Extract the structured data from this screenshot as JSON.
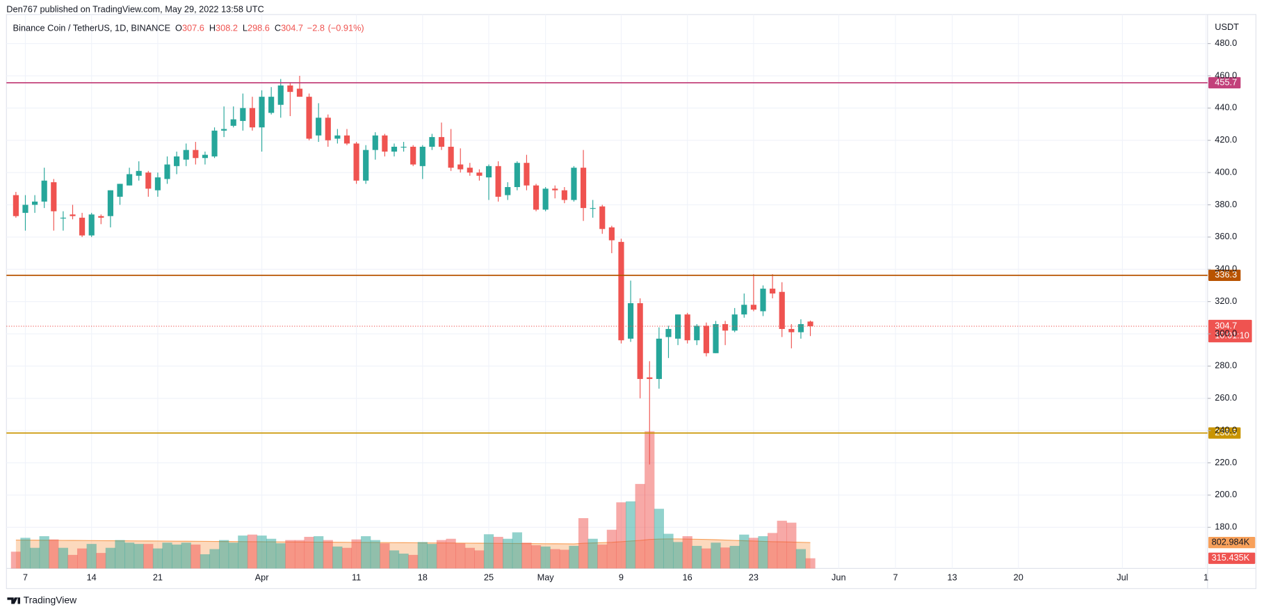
{
  "header": {
    "publisher": "Den767 published on TradingView.com, May 29, 2022 13:58 UTC"
  },
  "footer": {
    "brand": "TradingView"
  },
  "chart_data": {
    "type": "candlestick",
    "legend": {
      "name": "Binance Coin / TetherUS, 1D, BINANCE",
      "fields": [
        {
          "key": "O",
          "value": 307.6
        },
        {
          "key": "H",
          "value": 308.2
        },
        {
          "key": "L",
          "value": 298.6
        },
        {
          "key": "C",
          "value": 304.7
        }
      ],
      "change": {
        "value": -2.8,
        "label": "−2.8"
      },
      "change_pct": {
        "value": -0.91,
        "label": "(−0.91%)"
      }
    },
    "y_unit": "USDT",
    "up_color": "#26a69a",
    "down_color": "#ef5350",
    "x": [
      "03-06",
      "03-07",
      "03-08",
      "03-09",
      "03-10",
      "03-11",
      "03-12",
      "03-13",
      "03-14",
      "03-15",
      "03-16",
      "03-17",
      "03-18",
      "03-19",
      "03-20",
      "03-21",
      "03-22",
      "03-23",
      "03-24",
      "03-25",
      "03-26",
      "03-27",
      "03-28",
      "03-29",
      "03-30",
      "03-31",
      "04-01",
      "04-02",
      "04-03",
      "04-04",
      "04-05",
      "04-06",
      "04-07",
      "04-08",
      "04-09",
      "04-10",
      "04-11",
      "04-12",
      "04-13",
      "04-14",
      "04-15",
      "04-16",
      "04-17",
      "04-18",
      "04-19",
      "04-20",
      "04-21",
      "04-22",
      "04-23",
      "04-24",
      "04-25",
      "04-26",
      "04-27",
      "04-28",
      "04-29",
      "04-30",
      "05-01",
      "05-02",
      "05-03",
      "05-04",
      "05-05",
      "05-06",
      "05-07",
      "05-08",
      "05-09",
      "05-10",
      "05-11",
      "05-12",
      "05-13",
      "05-14",
      "05-15",
      "05-16",
      "05-17",
      "05-18",
      "05-19",
      "05-20",
      "05-21",
      "05-22",
      "05-23",
      "05-24",
      "05-25",
      "05-26",
      "05-27",
      "05-28",
      "05-29"
    ],
    "open": [
      386,
      375,
      380,
      382,
      394,
      372,
      374,
      372,
      361,
      373,
      373,
      385,
      392,
      398,
      400,
      389,
      396,
      404,
      408,
      414,
      409,
      410,
      426,
      429,
      432,
      440,
      428,
      437,
      442,
      454,
      452,
      447,
      423,
      434,
      421,
      423,
      418,
      395,
      414,
      423,
      413,
      416,
      416,
      404,
      416,
      422,
      416,
      405,
      403,
      400,
      397,
      404,
      386,
      391,
      406,
      392,
      377,
      390,
      389,
      383,
      403,
      378,
      379,
      366,
      357,
      297,
      319,
      273,
      272,
      298,
      297,
      312,
      296,
      305,
      288,
      306,
      302,
      312,
      318,
      314,
      328,
      326,
      303,
      301,
      307.6
    ],
    "high": [
      388,
      386,
      386,
      403,
      396,
      376,
      380,
      375,
      375,
      374,
      389,
      393,
      403,
      407,
      401,
      400,
      410,
      413,
      418,
      419,
      413,
      428,
      441,
      441,
      449,
      447,
      451,
      453,
      458,
      456,
      460,
      449,
      443,
      436,
      427,
      427,
      419,
      417,
      425,
      424,
      418,
      419,
      417,
      417,
      424,
      431,
      427,
      415,
      406,
      402,
      405,
      407,
      394,
      407,
      411,
      393,
      391,
      392,
      391,
      404,
      414,
      383,
      380,
      367,
      359,
      333,
      322,
      283,
      304,
      305,
      312,
      313,
      306,
      307,
      308,
      308,
      316,
      325,
      337,
      330,
      337,
      332,
      306,
      309,
      308.2
    ],
    "low": [
      372,
      364,
      375,
      378,
      364,
      364,
      371,
      360,
      360,
      368,
      366,
      380,
      392,
      395,
      385,
      385,
      393,
      399,
      404,
      405,
      405,
      409,
      422,
      428,
      426,
      426,
      413,
      436,
      434,
      435,
      447,
      420,
      419,
      416,
      418,
      417,
      393,
      393,
      408,
      410,
      410,
      413,
      404,
      396,
      414,
      414,
      401,
      400,
      398,
      395,
      383,
      382,
      383,
      389,
      389,
      376,
      376,
      384,
      381,
      382,
      370,
      372,
      362,
      350,
      294,
      295,
      260,
      219,
      266,
      285,
      293,
      294,
      293,
      286,
      288,
      293,
      301,
      310,
      314,
      311,
      322,
      298,
      291,
      297,
      298.6
    ],
    "close": [
      373,
      380,
      382,
      395,
      376,
      372,
      373,
      361,
      374,
      372,
      389,
      393,
      399,
      401,
      390,
      397,
      405,
      410,
      414,
      409,
      411,
      426,
      427,
      433,
      440,
      428,
      447,
      447,
      454,
      450,
      447,
      421,
      434,
      420,
      423,
      418,
      395,
      414,
      423,
      413,
      416,
      416,
      405,
      416,
      422,
      416,
      403,
      402,
      400,
      398,
      404,
      385,
      391,
      406,
      392,
      377,
      390,
      389,
      383,
      403,
      378,
      378,
      365,
      358,
      296,
      319,
      272,
      272,
      297,
      303,
      312,
      296,
      305,
      288,
      306,
      302,
      312,
      318,
      315,
      328,
      325,
      303,
      301,
      306,
      304.7
    ],
    "volume": {
      "values": [
        520000,
        950000,
        640000,
        1000000,
        900000,
        640000,
        420000,
        620000,
        760000,
        480000,
        640000,
        880000,
        800000,
        760000,
        760000,
        620000,
        800000,
        740000,
        800000,
        740000,
        440000,
        600000,
        880000,
        800000,
        1020000,
        1050000,
        1020000,
        920000,
        780000,
        880000,
        880000,
        980000,
        1000000,
        880000,
        680000,
        640000,
        900000,
        1000000,
        880000,
        780000,
        560000,
        460000,
        420000,
        820000,
        760000,
        880000,
        920000,
        780000,
        640000,
        560000,
        1060000,
        980000,
        920000,
        1120000,
        800000,
        720000,
        680000,
        600000,
        580000,
        700000,
        1560000,
        920000,
        740000,
        1200000,
        2050000,
        2080000,
        2620000,
        4250000,
        1850000,
        1075000,
        820000,
        1000000,
        700000,
        620000,
        800000,
        650000,
        700000,
        1050000,
        950000,
        1000000,
        1100000,
        1480000,
        1420000,
        600000,
        315435
      ],
      "last_label": "315.435K",
      "ma_values": [
        880000,
        878000,
        876000,
        874000,
        872000,
        870000,
        868000,
        866000,
        864000,
        862000,
        860000,
        858000,
        856000,
        854000,
        852000,
        850000,
        848000,
        846000,
        844000,
        842000,
        840000,
        838000,
        836000,
        834000,
        832000,
        830000,
        828000,
        826000,
        824000,
        822000,
        820000,
        818000,
        816000,
        814000,
        812000,
        810000,
        808000,
        806000,
        804000,
        802000,
        800000,
        798000,
        796000,
        794000,
        792000,
        790000,
        788000,
        786000,
        784000,
        782000,
        780000,
        778000,
        776000,
        774000,
        772000,
        770000,
        768000,
        766000,
        764000,
        762000,
        780000,
        790000,
        800000,
        810000,
        830000,
        850000,
        870000,
        900000,
        910000,
        915000,
        915000,
        910000,
        905000,
        900000,
        890000,
        880000,
        870000,
        860000,
        850000,
        840000,
        830000,
        825000,
        818000,
        810000,
        802984
      ],
      "ma_last_label": "802.984K",
      "ma_color": "#f7a05a"
    },
    "last_price": {
      "countdown": "10:01:10"
    },
    "hlines": [
      {
        "value": 455.7,
        "color": "#c2407a"
      },
      {
        "value": 336.3,
        "color": "#b85300"
      },
      {
        "value": 238.5,
        "color": "#c99400"
      }
    ],
    "xlim": [
      "03-05",
      "07-10"
    ],
    "xticks": [
      {
        "value": "03-07",
        "label": "7"
      },
      {
        "value": "03-14",
        "label": "14"
      },
      {
        "value": "03-21",
        "label": "21"
      },
      {
        "value": "04-01",
        "label": "Apr"
      },
      {
        "value": "04-11",
        "label": "11"
      },
      {
        "value": "04-18",
        "label": "18"
      },
      {
        "value": "04-25",
        "label": "25"
      },
      {
        "value": "05-01",
        "label": "May"
      },
      {
        "value": "05-09",
        "label": "9"
      },
      {
        "value": "05-16",
        "label": "16"
      },
      {
        "value": "05-23",
        "label": "23"
      },
      {
        "value": "06-01",
        "label": "Jun"
      },
      {
        "value": "06-07",
        "label": "7"
      },
      {
        "value": "06-13",
        "label": "13"
      },
      {
        "value": "06-20",
        "label": "20"
      },
      {
        "value": "07-01",
        "label": "Jul"
      },
      {
        "value": "08-01",
        "label": "1"
      }
    ],
    "ylim": [
      154.5,
      498
    ],
    "yticks": [
      {
        "value": 180,
        "label": "180.0"
      },
      {
        "value": 200,
        "label": "200.0"
      },
      {
        "value": 220,
        "label": "220.0"
      },
      {
        "value": 240,
        "label": "240.0"
      },
      {
        "value": 260,
        "label": "260.0"
      },
      {
        "value": 280,
        "label": "280.0"
      },
      {
        "value": 300,
        "label": "300.0"
      },
      {
        "value": 320,
        "label": "320.0"
      },
      {
        "value": 340,
        "label": "340.0"
      },
      {
        "value": 360,
        "label": "360.0"
      },
      {
        "value": 380,
        "label": "380.0"
      },
      {
        "value": 400,
        "label": "400.0"
      },
      {
        "value": 420,
        "label": "420.0"
      },
      {
        "value": 440,
        "label": "440.0"
      },
      {
        "value": 460,
        "label": "460.0"
      },
      {
        "value": 480,
        "label": "480.0"
      }
    ],
    "grid": true
  }
}
